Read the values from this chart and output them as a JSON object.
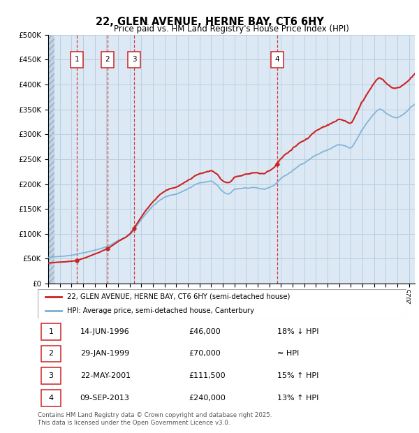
{
  "title": "22, GLEN AVENUE, HERNE BAY, CT6 6HY",
  "subtitle": "Price paid vs. HM Land Registry's House Price Index (HPI)",
  "ylim": [
    0,
    500000
  ],
  "yticks": [
    0,
    50000,
    100000,
    150000,
    200000,
    250000,
    300000,
    350000,
    400000,
    450000,
    500000
  ],
  "ytick_labels": [
    "£0",
    "£50K",
    "£100K",
    "£150K",
    "£200K",
    "£250K",
    "£300K",
    "£350K",
    "£400K",
    "£450K",
    "£500K"
  ],
  "xlim_start": 1994.0,
  "xlim_end": 2025.5,
  "transactions": [
    {
      "num": 1,
      "year": 1996.45,
      "price": 46000,
      "date": "14-JUN-1996",
      "price_str": "£46,000",
      "rel": "18% ↓ HPI"
    },
    {
      "num": 2,
      "year": 1999.08,
      "price": 70000,
      "date": "29-JAN-1999",
      "price_str": "£70,000",
      "rel": "≈ HPI"
    },
    {
      "num": 3,
      "year": 2001.38,
      "price": 111500,
      "date": "22-MAY-2001",
      "price_str": "£111,500",
      "rel": "15% ↑ HPI"
    },
    {
      "num": 4,
      "year": 2013.67,
      "price": 240000,
      "date": "09-SEP-2013",
      "price_str": "£240,000",
      "rel": "13% ↑ HPI"
    }
  ],
  "hpi_color": "#7aafd4",
  "price_color": "#cc2222",
  "background_color": "#dce9f5",
  "grid_color": "#b8cfe0",
  "legend_label_price": "22, GLEN AVENUE, HERNE BAY, CT6 6HY (semi-detached house)",
  "legend_label_hpi": "HPI: Average price, semi-detached house, Canterbury",
  "footer": "Contains HM Land Registry data © Crown copyright and database right 2025.\nThis data is licensed under the Open Government Licence v3.0."
}
